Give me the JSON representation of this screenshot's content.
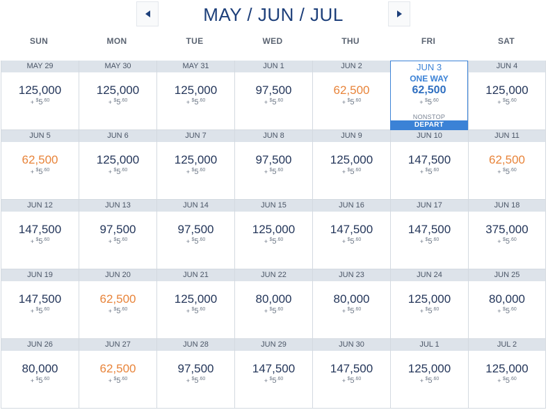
{
  "header": {
    "title": "MAY / JUN / JUL",
    "prev_icon": "chevron-left-icon",
    "next_icon": "chevron-right-icon"
  },
  "days_of_week": [
    "SUN",
    "MON",
    "TUE",
    "WED",
    "THU",
    "FRI",
    "SAT"
  ],
  "fee": {
    "plus": "+",
    "currency": "$",
    "dollars": "5",
    "cents": ".60"
  },
  "selected": {
    "one_way_label": "ONE WAY",
    "nonstop_label": "NONSTOP",
    "depart_label": "DEPART"
  },
  "colors": {
    "low_fare": "#e8843a",
    "selected": "#3b82d6",
    "primary_text": "#1d3f7a"
  },
  "weeks": [
    [
      {
        "date": "MAY 29",
        "miles": "125,000",
        "low": false
      },
      {
        "date": "MAY 30",
        "miles": "125,000",
        "low": false
      },
      {
        "date": "MAY 31",
        "miles": "125,000",
        "low": false
      },
      {
        "date": "JUN 1",
        "miles": "97,500",
        "low": false
      },
      {
        "date": "JUN 2",
        "miles": "62,500",
        "low": true
      },
      {
        "date": "JUN 3",
        "miles": "62,500",
        "low": false,
        "selected": true
      },
      {
        "date": "JUN 4",
        "miles": "125,000",
        "low": false
      }
    ],
    [
      {
        "date": "JUN 5",
        "miles": "62,500",
        "low": true
      },
      {
        "date": "JUN 6",
        "miles": "125,000",
        "low": false
      },
      {
        "date": "JUN 7",
        "miles": "125,000",
        "low": false
      },
      {
        "date": "JUN 8",
        "miles": "97,500",
        "low": false
      },
      {
        "date": "JUN 9",
        "miles": "125,000",
        "low": false
      },
      {
        "date": "JUN 10",
        "miles": "147,500",
        "low": false
      },
      {
        "date": "JUN 11",
        "miles": "62,500",
        "low": true
      }
    ],
    [
      {
        "date": "JUN 12",
        "miles": "147,500",
        "low": false
      },
      {
        "date": "JUN 13",
        "miles": "97,500",
        "low": false
      },
      {
        "date": "JUN 14",
        "miles": "97,500",
        "low": false
      },
      {
        "date": "JUN 15",
        "miles": "125,000",
        "low": false
      },
      {
        "date": "JUN 16",
        "miles": "147,500",
        "low": false
      },
      {
        "date": "JUN 17",
        "miles": "147,500",
        "low": false
      },
      {
        "date": "JUN 18",
        "miles": "375,000",
        "low": false
      }
    ],
    [
      {
        "date": "JUN 19",
        "miles": "147,500",
        "low": false
      },
      {
        "date": "JUN 20",
        "miles": "62,500",
        "low": true
      },
      {
        "date": "JUN 21",
        "miles": "125,000",
        "low": false
      },
      {
        "date": "JUN 22",
        "miles": "80,000",
        "low": false
      },
      {
        "date": "JUN 23",
        "miles": "80,000",
        "low": false
      },
      {
        "date": "JUN 24",
        "miles": "125,000",
        "low": false
      },
      {
        "date": "JUN 25",
        "miles": "80,000",
        "low": false
      }
    ],
    [
      {
        "date": "JUN 26",
        "miles": "80,000",
        "low": false
      },
      {
        "date": "JUN 27",
        "miles": "62,500",
        "low": true
      },
      {
        "date": "JUN 28",
        "miles": "97,500",
        "low": false
      },
      {
        "date": "JUN 29",
        "miles": "147,500",
        "low": false
      },
      {
        "date": "JUN 30",
        "miles": "147,500",
        "low": false
      },
      {
        "date": "JUL 1",
        "miles": "125,000",
        "low": false
      },
      {
        "date": "JUL 2",
        "miles": "125,000",
        "low": false
      }
    ]
  ]
}
